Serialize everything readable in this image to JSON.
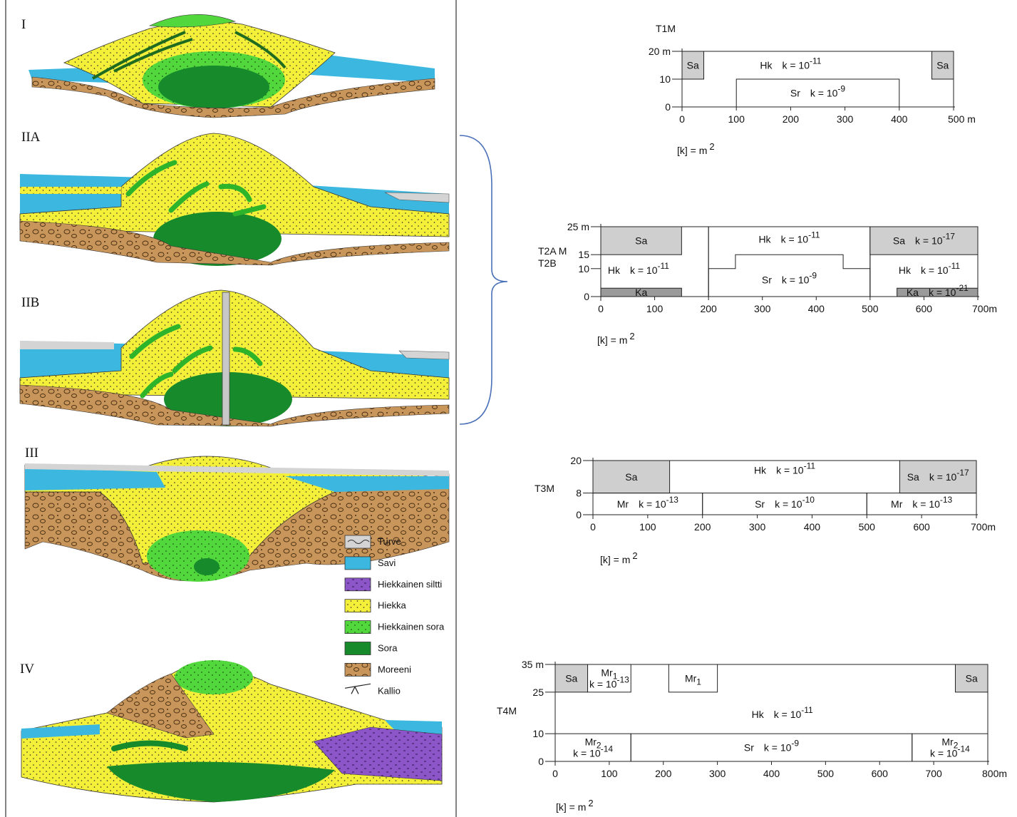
{
  "cross_sections": {
    "labels": [
      "I",
      "IIA",
      "IIB",
      "III",
      "IV"
    ]
  },
  "legend": {
    "items": [
      {
        "label": "Turve",
        "color": "#d4d4d4"
      },
      {
        "label": "Savi",
        "color": "#3cb8e0"
      },
      {
        "label": "Hiekkainen siltti",
        "color": "#8d56c8"
      },
      {
        "label": "Hiekka",
        "color": "#f4f03a"
      },
      {
        "label": "Hiekkainen sora",
        "color": "#52d83c"
      },
      {
        "label": "Sora",
        "color": "#178a2c"
      },
      {
        "label": "Moreeni",
        "color": "#c8955a"
      },
      {
        "label": "Kallio",
        "color": "#ffffff"
      }
    ]
  },
  "models": [
    {
      "name": [
        "T1M"
      ],
      "unit": "[k] = m",
      "unit_exp": "2",
      "xlim": [
        0,
        500
      ],
      "ylim": [
        0,
        20
      ],
      "xticks": [
        0,
        100,
        200,
        300,
        400,
        {
          "value": 500,
          "label": "500 m"
        }
      ],
      "yticks": [
        0,
        10,
        {
          "value": 20,
          "label": "20 m"
        }
      ],
      "regions": [
        {
          "label": "Hk",
          "k": "k = 10",
          "exp": "-11",
          "x": [
            0,
            500
          ],
          "y": [
            0,
            20
          ]
        },
        {
          "label": "Sr",
          "k": "k = 10",
          "exp": "-9",
          "x": [
            100,
            400
          ],
          "y": [
            0,
            10
          ]
        },
        {
          "label": "Sa",
          "x": [
            0,
            40
          ],
          "y": [
            10,
            20
          ],
          "fill": "#cfcfcf"
        },
        {
          "label": "Sa",
          "x": [
            460,
            500
          ],
          "y": [
            10,
            20
          ],
          "fill": "#cfcfcf"
        }
      ]
    },
    {
      "name": [
        "T2A M",
        "T2B"
      ],
      "unit": "[k] = m",
      "unit_exp": "2",
      "xlim": [
        0,
        700
      ],
      "ylim": [
        0,
        25
      ],
      "xticks": [
        0,
        100,
        200,
        300,
        400,
        500,
        600,
        {
          "value": 700,
          "label": "700m"
        }
      ],
      "yticks": [
        0,
        10,
        15,
        {
          "value": 25,
          "label": "25 m"
        }
      ],
      "regions": [
        {
          "label": "Hk",
          "k": "k = 10",
          "exp": "-11",
          "x": [
            0,
            200
          ],
          "y": [
            0,
            25
          ]
        },
        {
          "label": "Sa",
          "x": [
            0,
            150
          ],
          "y": [
            15,
            25
          ],
          "fill": "#cfcfcf"
        },
        {
          "label": "Ka",
          "x": [
            0,
            150
          ],
          "y": [
            0,
            3
          ],
          "fill": "#9a9a9a"
        },
        {
          "label": "Hk",
          "k": "k = 10",
          "exp": "-11",
          "x": [
            200,
            500
          ],
          "y": [
            0,
            25
          ]
        },
        {
          "label": "Sr",
          "k": "k = 10",
          "exp": "-9",
          "points": [
            [
              200,
              0
            ],
            [
              200,
              10
            ],
            [
              250,
              10
            ],
            [
              250,
              15
            ],
            [
              450,
              15
            ],
            [
              450,
              10
            ],
            [
              500,
              10
            ],
            [
              500,
              0
            ]
          ]
        },
        {
          "label": "Hk",
          "k": "k = 10",
          "exp": "-11",
          "x": [
            500,
            700
          ],
          "y": [
            0,
            25
          ]
        },
        {
          "label": "Sa",
          "k": "k = 10",
          "exp": "-17",
          "x": [
            500,
            700
          ],
          "y": [
            15,
            25
          ],
          "fill": "#cfcfcf"
        },
        {
          "label": "Ka",
          "k": "k = 10",
          "exp": "-21",
          "x": [
            550,
            700
          ],
          "y": [
            0,
            3
          ],
          "fill": "#9a9a9a"
        }
      ]
    },
    {
      "name": [
        "T3M"
      ],
      "unit": "[k] = m",
      "unit_exp": "2",
      "xlim": [
        0,
        700
      ],
      "ylim": [
        0,
        20
      ],
      "xticks": [
        0,
        100,
        200,
        300,
        400,
        500,
        600,
        {
          "value": 700,
          "label": "700m"
        }
      ],
      "yticks": [
        0,
        8,
        20
      ],
      "regions": [
        {
          "label": "Hk",
          "k": "k = 10",
          "exp": "-11",
          "x": [
            0,
            700
          ],
          "y": [
            0,
            20
          ]
        },
        {
          "label": "Sa",
          "x": [
            0,
            140
          ],
          "y": [
            8,
            20
          ],
          "fill": "#cfcfcf"
        },
        {
          "label": "Sa",
          "k": "k = 10",
          "exp": "-17",
          "x": [
            560,
            700
          ],
          "y": [
            8,
            20
          ],
          "fill": "#cfcfcf"
        },
        {
          "label": "Mr",
          "k": "k = 10",
          "exp": "-13",
          "x": [
            0,
            200
          ],
          "y": [
            0,
            8
          ]
        },
        {
          "label": "Sr",
          "k": "k = 10",
          "exp": "-10",
          "x": [
            200,
            500
          ],
          "y": [
            0,
            8
          ]
        },
        {
          "label": "Mr",
          "k": "k = 10",
          "exp": "-13",
          "x": [
            500,
            700
          ],
          "y": [
            0,
            8
          ]
        }
      ]
    },
    {
      "name": [
        "T4M"
      ],
      "unit": "[k] = m",
      "unit_exp": "2",
      "xlim": [
        0,
        800
      ],
      "ylim": [
        0,
        35
      ],
      "xticks": [
        0,
        100,
        200,
        300,
        400,
        500,
        600,
        700,
        {
          "value": 800,
          "label": "800m"
        }
      ],
      "yticks": [
        0,
        10,
        25,
        {
          "value": 35,
          "label": "35 m"
        }
      ],
      "regions": [
        {
          "label": "Hk",
          "k": "k = 10",
          "exp": "-11",
          "x": [
            0,
            800
          ],
          "y": [
            0,
            35
          ]
        },
        {
          "label": "Sa",
          "x": [
            0,
            60
          ],
          "y": [
            25,
            35
          ],
          "fill": "#cfcfcf"
        },
        {
          "label": "Mr",
          "sub": "1",
          "k": "k = 10",
          "exp": "-13",
          "x": [
            60,
            140
          ],
          "y": [
            25,
            35
          ]
        },
        {
          "label": "Mr",
          "sub": "1",
          "x": [
            210,
            300
          ],
          "y": [
            25,
            35
          ]
        },
        {
          "label": "Sa",
          "x": [
            740,
            800
          ],
          "y": [
            25,
            35
          ],
          "fill": "#cfcfcf"
        },
        {
          "label": "Mr",
          "sub": "2",
          "k": "k = 10",
          "exp": "-14",
          "x": [
            0,
            140
          ],
          "y": [
            0,
            10
          ]
        },
        {
          "label": "Sr",
          "k": "k = 10",
          "exp": "-9",
          "x": [
            140,
            660
          ],
          "y": [
            0,
            10
          ]
        },
        {
          "label": "Mr",
          "sub": "2",
          "k": "k = 10",
          "exp": "-14",
          "x": [
            660,
            800
          ],
          "y": [
            0,
            10
          ]
        }
      ]
    }
  ]
}
